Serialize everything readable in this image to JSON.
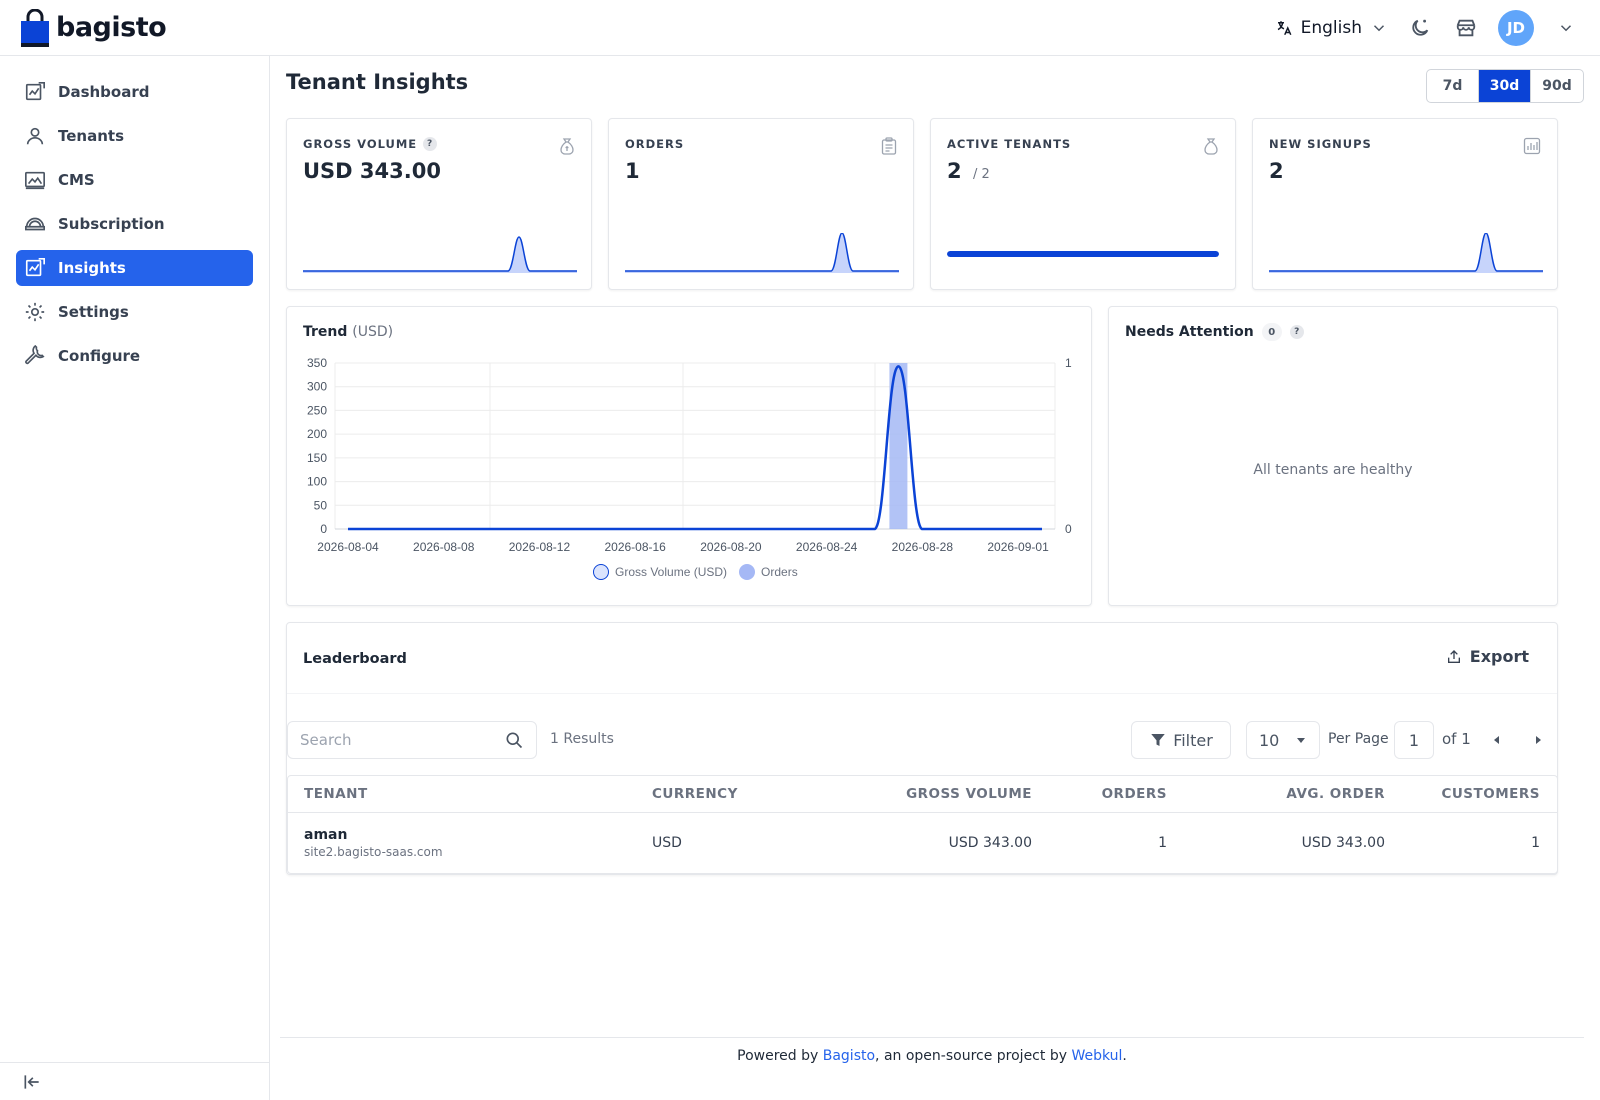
{
  "brand": {
    "name": "bagisto"
  },
  "header": {
    "language": "English",
    "avatar_initials": "JD",
    "icons": [
      "translate-icon",
      "chevron-down-icon",
      "moon-icon",
      "store-icon",
      "chevron-down-icon"
    ]
  },
  "sidebar": {
    "items": [
      {
        "label": "Dashboard",
        "icon": "dashboard-icon",
        "active": false
      },
      {
        "label": "Tenants",
        "icon": "user-icon",
        "active": false
      },
      {
        "label": "CMS",
        "icon": "cms-icon",
        "active": false
      },
      {
        "label": "Subscription",
        "icon": "subscription-icon",
        "active": false
      },
      {
        "label": "Insights",
        "icon": "insights-icon",
        "active": true
      },
      {
        "label": "Settings",
        "icon": "gear-icon",
        "active": false
      },
      {
        "label": "Configure",
        "icon": "wrench-icon",
        "active": false
      }
    ]
  },
  "page": {
    "title": "Tenant Insights",
    "ranges": [
      "7d",
      "30d",
      "90d"
    ],
    "active_range": "30d"
  },
  "kpis": {
    "gross_volume": {
      "label": "GROSS VOLUME",
      "help": "?",
      "value": "USD 343.00"
    },
    "orders": {
      "label": "ORDERS",
      "value": "1"
    },
    "active_tenants": {
      "label": "ACTIVE TENANTS",
      "value": "2",
      "sub": "/ 2",
      "progress": 1.0
    },
    "new_signups": {
      "label": "NEW SIGNUPS",
      "value": "2"
    }
  },
  "trend": {
    "title": "Trend",
    "unit": "(USD)"
  },
  "chart_data": {
    "type": "line",
    "x_ticks": [
      "2026-08-04",
      "2026-08-08",
      "2026-08-12",
      "2026-08-16",
      "2026-08-20",
      "2026-08-24",
      "2026-08-28",
      "2026-09-01"
    ],
    "x": [
      "2026-08-04",
      "2026-08-05",
      "2026-08-06",
      "2026-08-07",
      "2026-08-08",
      "2026-08-09",
      "2026-08-10",
      "2026-08-11",
      "2026-08-12",
      "2026-08-13",
      "2026-08-14",
      "2026-08-15",
      "2026-08-16",
      "2026-08-17",
      "2026-08-18",
      "2026-08-19",
      "2026-08-20",
      "2026-08-21",
      "2026-08-22",
      "2026-08-23",
      "2026-08-24",
      "2026-08-25",
      "2026-08-26",
      "2026-08-27",
      "2026-08-28",
      "2026-08-29",
      "2026-08-30",
      "2026-08-31",
      "2026-09-01",
      "2026-09-02"
    ],
    "series": [
      {
        "name": "Gross Volume (USD)",
        "type": "line",
        "axis": "left",
        "color": "#0b43d6",
        "values": [
          0,
          0,
          0,
          0,
          0,
          0,
          0,
          0,
          0,
          0,
          0,
          0,
          0,
          0,
          0,
          0,
          0,
          0,
          0,
          0,
          0,
          0,
          0,
          343,
          0,
          0,
          0,
          0,
          0,
          0
        ]
      },
      {
        "name": "Orders",
        "type": "bar",
        "axis": "right",
        "color": "#a5b8f5",
        "values": [
          0,
          0,
          0,
          0,
          0,
          0,
          0,
          0,
          0,
          0,
          0,
          0,
          0,
          0,
          0,
          0,
          0,
          0,
          0,
          0,
          0,
          0,
          0,
          1,
          0,
          0,
          0,
          0,
          0,
          0
        ]
      }
    ],
    "y_left": {
      "min": 0,
      "max": 350,
      "ticks": [
        0,
        50,
        100,
        150,
        200,
        250,
        300,
        350
      ]
    },
    "y_right": {
      "min": 0,
      "max": 1,
      "ticks": [
        0,
        1
      ]
    },
    "grid": true,
    "legend": "bottom"
  },
  "attention": {
    "title": "Needs Attention",
    "count": "0",
    "help": "?",
    "empty_text": "All tenants are healthy"
  },
  "leaderboard": {
    "title": "Leaderboard",
    "export_label": "Export",
    "search_placeholder": "Search",
    "results": "1 Results",
    "filter_label": "Filter",
    "per_page": "10",
    "per_page_label": "Per Page",
    "page": "1",
    "of_pages": "of 1",
    "columns": [
      "TENANT",
      "CURRENCY",
      "GROSS VOLUME",
      "ORDERS",
      "AVG. ORDER",
      "CUSTOMERS"
    ],
    "rows": [
      {
        "tenant": "aman",
        "domain": "site2.bagisto-saas.com",
        "currency": "USD",
        "gross_volume": "USD 343.00",
        "orders": "1",
        "avg_order": "USD 343.00",
        "customers": "1"
      }
    ]
  },
  "footer": {
    "prefix": "Powered by ",
    "link1": "Bagisto",
    "middle": ", an open-source project by ",
    "link2": "Webkul",
    "suffix": "."
  }
}
